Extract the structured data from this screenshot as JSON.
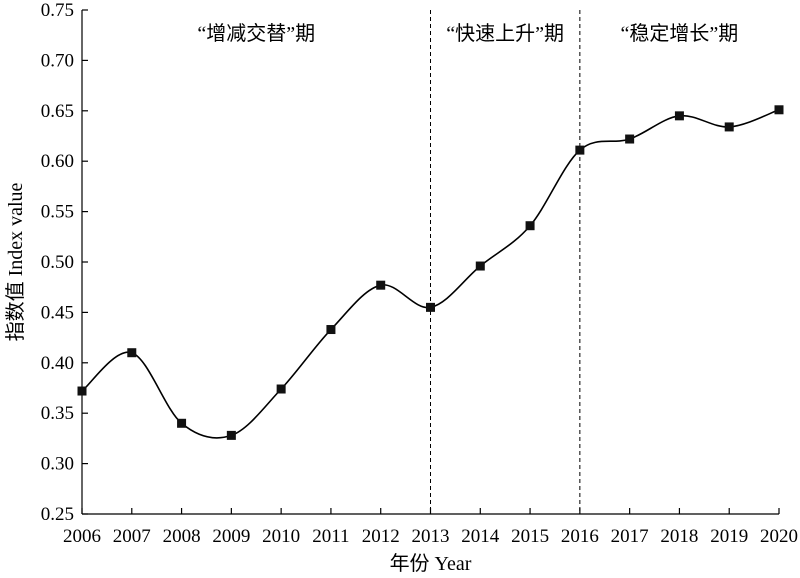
{
  "chart_data": {
    "type": "line",
    "x": [
      2006,
      2007,
      2008,
      2009,
      2010,
      2011,
      2012,
      2013,
      2014,
      2015,
      2016,
      2017,
      2018,
      2019,
      2020
    ],
    "series": [
      {
        "values": [
          0.372,
          0.41,
          0.34,
          0.328,
          0.374,
          0.433,
          0.477,
          0.455,
          0.496,
          0.536,
          0.611,
          0.622,
          0.645,
          0.634,
          0.651
        ]
      }
    ],
    "xlabel": "年份 Year",
    "ylabel": "指数值 Index value",
    "xlim": [
      2006,
      2020
    ],
    "ylim": [
      0.25,
      0.75
    ],
    "yticks": [
      "0.25",
      "0.30",
      "0.35",
      "0.40",
      "0.45",
      "0.50",
      "0.55",
      "0.60",
      "0.65",
      "0.70",
      "0.75"
    ],
    "xticks": [
      "2006",
      "2007",
      "2008",
      "2009",
      "2010",
      "2011",
      "2012",
      "2013",
      "2014",
      "2015",
      "2016",
      "2017",
      "2018",
      "2019",
      "2020"
    ],
    "dividers": [
      2013,
      2016
    ],
    "phases": [
      {
        "label": "“增减交替”期",
        "from": 2006,
        "to": 2013
      },
      {
        "label": "“快速上升”期",
        "from": 2013,
        "to": 2016
      },
      {
        "label": "“稳定增长”期",
        "from": 2016,
        "to": 2020
      }
    ],
    "grid": false,
    "line_style": "smooth",
    "marker": "square",
    "colors": {
      "line": "#000000",
      "marker": "#111111",
      "divider": "#000000"
    }
  }
}
